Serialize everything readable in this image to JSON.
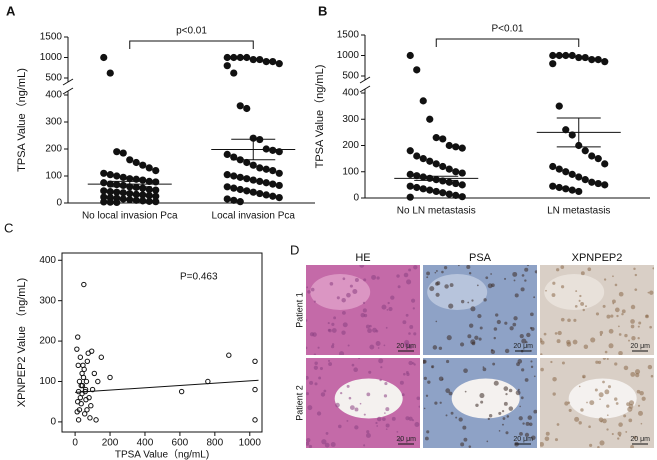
{
  "chart_data": [
    {
      "type": "dot",
      "panel_label": "A",
      "annotation": "p<0.01",
      "y_label": "TPSA Value（ng/mL)",
      "categories": [
        "No local invasion Pca",
        "Local invasion Pca"
      ],
      "groups": [
        {
          "values": [
            1000,
            620,
            190,
            185,
            160,
            150,
            140,
            130,
            120,
            110,
            105,
            100,
            95,
            90,
            88,
            85,
            80,
            78,
            75,
            70,
            68,
            65,
            60,
            58,
            55,
            50,
            48,
            45,
            42,
            40,
            38,
            35,
            32,
            30,
            28,
            25,
            22,
            20,
            18,
            15,
            12,
            10,
            8,
            6,
            5,
            4,
            3,
            2
          ],
          "mean": 70,
          "sem": 10
        },
        {
          "values": [
            1000,
            1000,
            1000,
            1000,
            950,
            950,
            900,
            900,
            850,
            800,
            620,
            360,
            350,
            240,
            235,
            200,
            195,
            190,
            180,
            170,
            160,
            150,
            140,
            130,
            125,
            120,
            110,
            105,
            100,
            95,
            90,
            85,
            80,
            75,
            70,
            65,
            60,
            55,
            50,
            45,
            40,
            35,
            30,
            25,
            20,
            15,
            10,
            5
          ],
          "mean": 198,
          "sem": 38
        }
      ],
      "color": "#111111",
      "ylim": [
        0,
        1500
      ],
      "axis_break": [
        400,
        500
      ],
      "yticks": [
        0,
        100,
        200,
        300,
        400,
        500,
        1000,
        1500
      ]
    },
    {
      "type": "dot",
      "panel_label": "B",
      "annotation": "P<0.01",
      "y_label": "TPSA Value（ng/mL)",
      "categories": [
        "No LN metastasis",
        "LN metastasis"
      ],
      "groups": [
        {
          "values": [
            1000,
            650,
            370,
            300,
            230,
            225,
            200,
            195,
            190,
            180,
            160,
            150,
            140,
            130,
            120,
            110,
            100,
            95,
            90,
            85,
            80,
            75,
            70,
            65,
            60,
            55,
            50,
            45,
            40,
            35,
            30,
            25,
            20,
            15,
            10,
            5,
            3
          ],
          "mean": 75,
          "sem": 8
        },
        {
          "values": [
            1000,
            1000,
            1000,
            1000,
            950,
            950,
            900,
            900,
            850,
            800,
            350,
            260,
            240,
            200,
            180,
            160,
            150,
            130,
            120,
            110,
            100,
            90,
            80,
            70,
            60,
            55,
            50,
            45,
            40,
            35,
            30,
            25
          ],
          "mean": 250,
          "sem": 55
        }
      ],
      "color": "#111111",
      "ylim": [
        0,
        1500
      ],
      "axis_break": [
        400,
        500
      ],
      "yticks": [
        0,
        100,
        200,
        300,
        400,
        500,
        1000,
        1500
      ]
    },
    {
      "type": "scatter",
      "panel_label": "C",
      "annotation": "P=0.463",
      "x_label": "TPSA Value（ng/mL)",
      "y_label": "XPNPEP2 Value （ng/mL)",
      "x": [
        20,
        25,
        30,
        35,
        40,
        45,
        50,
        15,
        10,
        55,
        60,
        65,
        70,
        75,
        80,
        90,
        100,
        110,
        120,
        150,
        200,
        30,
        35,
        40,
        42,
        48,
        52,
        58,
        62,
        68,
        25,
        20,
        15,
        12,
        18,
        610,
        760,
        880,
        1030,
        1030,
        1030,
        85,
        95,
        130
      ],
      "values": [
        5,
        30,
        60,
        90,
        120,
        140,
        340,
        210,
        180,
        20,
        80,
        100,
        150,
        170,
        60,
        40,
        80,
        120,
        5,
        160,
        110,
        160,
        45,
        70,
        90,
        110,
        130,
        75,
        55,
        30,
        100,
        75,
        50,
        25,
        140,
        75,
        100,
        165,
        150,
        80,
        5,
        10,
        175,
        100
      ],
      "fit": {
        "x": [
          0,
          1050
        ],
        "y": [
          73,
          103
        ]
      },
      "color": "#111111",
      "xlim": [
        -75,
        1070
      ],
      "ylim": [
        -25,
        418
      ],
      "xticks": [
        0,
        200,
        400,
        600,
        800,
        1000
      ],
      "yticks": [
        0,
        100,
        200,
        300,
        400
      ]
    }
  ],
  "figure_d": {
    "panel_label": "D",
    "columns": [
      "HE",
      "PSA",
      "XPNPEP2"
    ],
    "rows": [
      "Patient 1",
      "Patient 2"
    ],
    "scale_bar": "20 μm"
  }
}
